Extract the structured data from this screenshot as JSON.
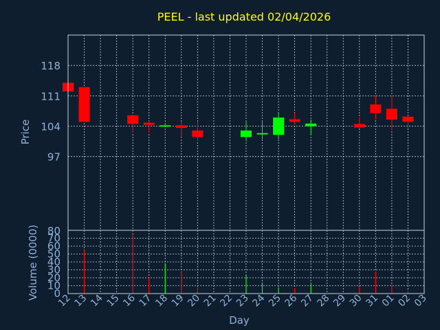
{
  "chart_data": {
    "type": "candlestick",
    "title": "PEEL - last updated 02/04/2026",
    "xlabel": "Day",
    "ylabel_price": "Price",
    "ylabel_volume": "Volume (0000)",
    "colors": {
      "up": "#00ff00",
      "down": "#ff0000",
      "title": "#ffff00",
      "axis_text": "#8fb2d6",
      "background": "#0f1e2e"
    },
    "x_tick_labels": [
      "12",
      "13",
      "14",
      "15",
      "16",
      "17",
      "18",
      "19",
      "20",
      "21",
      "22",
      "23",
      "24",
      "25",
      "26",
      "27",
      "28",
      "29",
      "30",
      "31",
      "01",
      "02",
      "03"
    ],
    "price_ylim": [
      80,
      125
    ],
    "price_ticks": [
      97,
      104,
      111,
      118
    ],
    "volume_ylim": [
      0,
      80
    ],
    "volume_ticks": [
      0,
      10,
      20,
      30,
      40,
      50,
      60,
      70,
      80
    ],
    "candles": [
      {
        "x": "12",
        "open": 114.0,
        "high": 114.0,
        "low": 112.0,
        "close": 112.0
      },
      {
        "x": "13",
        "open": 113.0,
        "high": 113.0,
        "low": 105.0,
        "close": 105.0
      },
      {
        "x": "16",
        "open": 106.5,
        "high": 106.5,
        "low": 102.5,
        "close": 104.5
      },
      {
        "x": "17",
        "open": 104.8,
        "high": 105.2,
        "low": 102.5,
        "close": 104.3
      },
      {
        "x": "18",
        "open": 104.0,
        "high": 104.3,
        "low": 103.9,
        "close": 104.2
      },
      {
        "x": "19",
        "open": 104.2,
        "high": 105.0,
        "low": 101.5,
        "close": 103.6
      },
      {
        "x": "20",
        "open": 103.0,
        "high": 105.0,
        "low": 100.5,
        "close": 101.5
      },
      {
        "x": "23",
        "open": 101.5,
        "high": 105.0,
        "low": 100.5,
        "close": 103.0
      },
      {
        "x": "24",
        "open": 102.2,
        "high": 105.0,
        "low": 101.0,
        "close": 102.4
      },
      {
        "x": "25",
        "open": 102.0,
        "high": 107.0,
        "low": 101.0,
        "close": 106.0
      },
      {
        "x": "26",
        "open": 105.6,
        "high": 107.0,
        "low": 104.5,
        "close": 105.0
      },
      {
        "x": "27",
        "open": 104.0,
        "high": 105.5,
        "low": 102.0,
        "close": 104.6
      },
      {
        "x": "30",
        "open": 104.5,
        "high": 106.0,
        "low": 103.5,
        "close": 103.7
      },
      {
        "x": "31",
        "open": 109.0,
        "high": 111.0,
        "low": 105.5,
        "close": 107.0
      },
      {
        "x": "01",
        "open": 108.0,
        "high": 111.0,
        "low": 103.0,
        "close": 105.5
      },
      {
        "x": "02",
        "open": 106.2,
        "high": 106.2,
        "low": 103.5,
        "close": 105.0
      }
    ],
    "volume": [
      {
        "x": "12",
        "value": 0
      },
      {
        "x": "13",
        "value": 55
      },
      {
        "x": "16",
        "value": 75
      },
      {
        "x": "17",
        "value": 20
      },
      {
        "x": "18",
        "value": 38
      },
      {
        "x": "19",
        "value": 27
      },
      {
        "x": "20",
        "value": 8
      },
      {
        "x": "23",
        "value": 23
      },
      {
        "x": "24",
        "value": 14
      },
      {
        "x": "25",
        "value": 8
      },
      {
        "x": "26",
        "value": 7
      },
      {
        "x": "27",
        "value": 12
      },
      {
        "x": "30",
        "value": 9
      },
      {
        "x": "31",
        "value": 28
      },
      {
        "x": "01",
        "value": 11
      },
      {
        "x": "02",
        "value": 4
      }
    ]
  }
}
